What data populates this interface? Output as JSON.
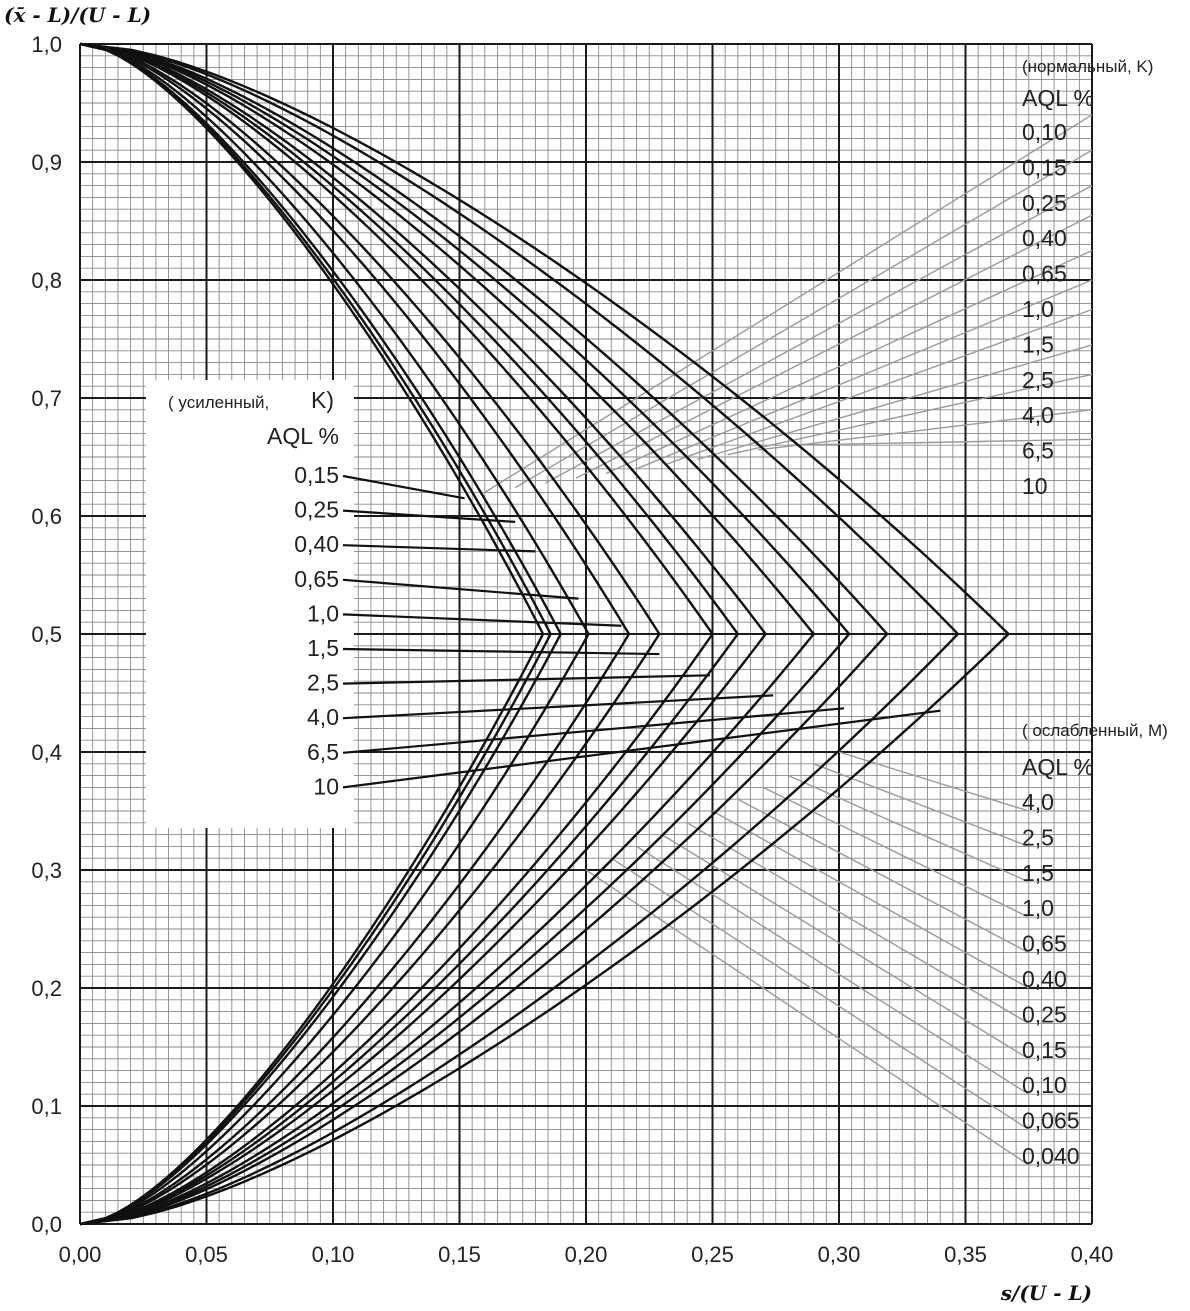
{
  "chart_data": {
    "type": "line",
    "ylabel": "(x̄ - L)/(U - L)",
    "xlabel": "s/(U - L)",
    "xlim": [
      0,
      0.4
    ],
    "ylim": [
      0,
      1.0
    ],
    "x_ticks": [
      "0,00",
      "0,05",
      "0,10",
      "0,15",
      "0,20",
      "0,25",
      "0,30",
      "0,35",
      "0,40"
    ],
    "y_ticks": [
      "0,0",
      "0,1",
      "0,2",
      "0,3",
      "0,4",
      "0,5",
      "0,6",
      "0,7",
      "0,8",
      "0,9",
      "1,0"
    ],
    "grid": true,
    "curve_peaks_s": [
      0.183,
      0.186,
      0.19,
      0.201,
      0.217,
      0.229,
      0.25,
      0.26,
      0.271,
      0.29,
      0.304,
      0.319,
      0.347,
      0.367
    ],
    "legend_normal": {
      "title": "(нормальный, K)",
      "aql_title": "AQL %",
      "entries": [
        "0,10",
        "0,15",
        "0,25",
        "0,40",
        "0,65",
        "1,0",
        "1,5",
        "2,5",
        "4,0",
        "6,5",
        "10"
      ]
    },
    "legend_tightened": {
      "title_word": "( усиленный,",
      "title_letter": "K)",
      "aql_title": "AQL %",
      "entries": [
        "0,15",
        "0,25",
        "0,40",
        "0,65",
        "1,0",
        "1,5",
        "2,5",
        "4,0",
        "6,5",
        "10"
      ],
      "pointer_targets": [
        {
          "s": 0.152,
          "y": 0.615
        },
        {
          "s": 0.172,
          "y": 0.595
        },
        {
          "s": 0.18,
          "y": 0.57
        },
        {
          "s": 0.197,
          "y": 0.53
        },
        {
          "s": 0.214,
          "y": 0.507
        },
        {
          "s": 0.229,
          "y": 0.483
        },
        {
          "s": 0.249,
          "y": 0.465
        },
        {
          "s": 0.274,
          "y": 0.448
        },
        {
          "s": 0.302,
          "y": 0.437
        },
        {
          "s": 0.34,
          "y": 0.435
        }
      ]
    },
    "legend_reduced": {
      "title": "( ослабленный, M)",
      "aql_title": "AQL %",
      "entries": [
        "4,0",
        "2,5",
        "1,5",
        "1,0",
        "0,65",
        "0,40",
        "0,25",
        "0,15",
        "0,10",
        "0,065",
        "0,040"
      ]
    },
    "colors": {
      "grid_major": "#1a1a1a",
      "grid_minor": "#8a8a8a",
      "curve": "#111111",
      "guide": "#9a9a9a"
    }
  }
}
